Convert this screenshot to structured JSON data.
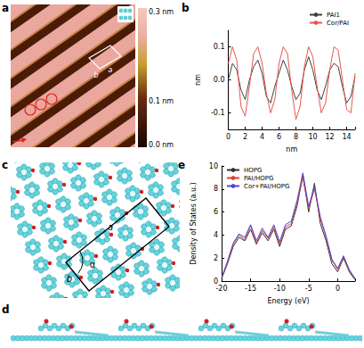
{
  "panel_labels": [
    "a",
    "b",
    "c",
    "d",
    "e"
  ],
  "stm_image": {
    "colorbar_ticks": [
      {
        "value": 0.3,
        "label": "0.3 nm"
      },
      {
        "value": 0.1,
        "label": "0.1 nm"
      },
      {
        "value": 0.0,
        "label": "0.0 nm"
      }
    ],
    "cell_labels": [
      "b",
      "a"
    ]
  },
  "model": {
    "cell_labels": [
      "a",
      "b",
      "α"
    ]
  },
  "chart_data": [
    {
      "type": "line",
      "panel": "b",
      "x_label": "nm",
      "y_label": "nm",
      "x": [
        0,
        0.5,
        1,
        1.5,
        2,
        2.5,
        3,
        3.5,
        4,
        4.5,
        5,
        5.5,
        6,
        6.5,
        7,
        7.5,
        8,
        8.5,
        9,
        9.5,
        10,
        10.5,
        11,
        11.5,
        12,
        12.5,
        13,
        13.5,
        14,
        14.5,
        15
      ],
      "series": [
        {
          "name": "PAI1",
          "color": "#404040",
          "values": [
            0.0,
            0.05,
            0.03,
            -0.03,
            -0.06,
            0.0,
            0.04,
            0.06,
            0.02,
            -0.05,
            -0.07,
            -0.02,
            0.02,
            0.06,
            0.03,
            -0.02,
            -0.06,
            -0.04,
            0.03,
            0.07,
            0.03,
            -0.03,
            -0.06,
            -0.02,
            0.03,
            0.05,
            0.04,
            -0.02,
            -0.07,
            -0.05,
            0.01
          ]
        },
        {
          "name": "Cor/PAI",
          "color": "#e8554e",
          "values": [
            0.05,
            0.1,
            0.06,
            -0.08,
            -0.11,
            -0.02,
            0.08,
            0.1,
            0.05,
            -0.04,
            -0.1,
            -0.06,
            0.05,
            0.1,
            0.08,
            -0.03,
            -0.12,
            -0.08,
            0.04,
            0.1,
            0.07,
            -0.02,
            -0.1,
            -0.07,
            0.03,
            0.1,
            0.09,
            0.0,
            -0.09,
            -0.1,
            0.02
          ]
        }
      ],
      "xlim": [
        0,
        15
      ],
      "xticks": [
        0,
        2,
        4,
        6,
        8,
        10,
        12,
        14
      ],
      "ylim": [
        -0.15,
        0.15
      ],
      "yticks": [
        -0.1,
        {
          "value": 0,
          "label": "0.0"
        },
        0.1
      ],
      "legend": "upper right",
      "grid": false
    },
    {
      "type": "line",
      "panel": "e",
      "x_label": "Energy (eV)",
      "y_label": "Density of States (a.u.)",
      "x": [
        -20,
        -19,
        -18,
        -17,
        -16,
        -15,
        -14,
        -13,
        -12,
        -11,
        -10,
        -9,
        -8,
        -7,
        -6,
        -5,
        -4,
        -3,
        -2,
        -1,
        0,
        1,
        2,
        3
      ],
      "series": [
        {
          "name": "HOPG",
          "color": "#333333",
          "values": [
            0.2,
            1.5,
            3.0,
            3.8,
            3.5,
            4.5,
            3.2,
            4.2,
            3.5,
            4.5,
            3.0,
            4.5,
            4.8,
            6.5,
            9.2,
            6.0,
            8.5,
            5.0,
            3.5,
            1.5,
            0.8,
            2.0,
            0.8,
            0.1
          ]
        },
        {
          "name": "PAI/HOPG",
          "color": "#e0403a",
          "values": [
            0.3,
            1.6,
            3.2,
            4.0,
            3.6,
            4.8,
            3.3,
            4.4,
            3.7,
            4.7,
            3.2,
            4.7,
            5.0,
            6.8,
            9.0,
            6.3,
            8.0,
            5.4,
            3.8,
            1.8,
            1.0,
            2.1,
            0.9,
            0.2
          ]
        },
        {
          "name": "Cor+PAI/HOPG",
          "color": "#4a4ad0",
          "values": [
            0.3,
            1.7,
            3.3,
            4.1,
            3.8,
            4.9,
            3.5,
            4.6,
            3.8,
            4.9,
            3.4,
            4.9,
            5.2,
            7.0,
            9.4,
            6.5,
            8.2,
            5.6,
            3.9,
            1.9,
            1.1,
            2.2,
            1.0,
            0.2
          ]
        }
      ],
      "xlim": [
        -20,
        3
      ],
      "xticks": [
        -20,
        -15,
        -10,
        -5,
        0
      ],
      "ylim": [
        0,
        10
      ],
      "yticks": [
        0,
        2,
        4,
        6,
        8,
        10
      ],
      "legend": "upper left",
      "grid": false
    }
  ]
}
